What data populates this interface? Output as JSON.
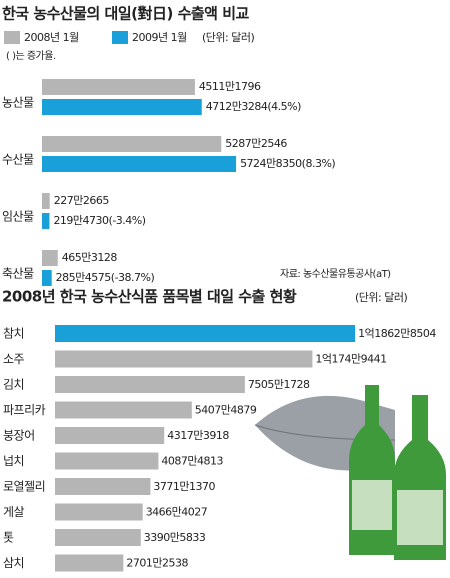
{
  "chart_data": [
    {
      "type": "bar",
      "orientation": "horizontal",
      "title": "한국 농수산물의 대일(對日) 수출액 비교",
      "unit_note": "(단위: 달러)",
      "note": "( )는 증가율.",
      "source": "자료: 농수산물유통공사(aT)",
      "categories": [
        "농산물",
        "수산물",
        "임산물",
        "축산물"
      ],
      "series": [
        {
          "name": "2008년 1월",
          "color": "#b5b5b5",
          "values": [
            45111796,
            52872546,
            2272665,
            4653128
          ],
          "value_labels": [
            "4511만1796",
            "5287만2546",
            "227만2665",
            "465만3128"
          ]
        },
        {
          "name": "2009년 1월",
          "color": "#1aa0d8",
          "values": [
            47123284,
            57248350,
            2194730,
            2854575
          ],
          "value_labels": [
            "4712만3284(4.5%)",
            "5724만8350(8.3%)",
            "219만4730(-3.4%)",
            "285만4575(-38.7%)"
          ]
        }
      ]
    },
    {
      "type": "bar",
      "orientation": "horizontal",
      "title": "2008년 한국 농수산식품 품목별 대일 수출 현황",
      "unit_note": "(단위: 달러)",
      "categories": [
        "참치",
        "소주",
        "김치",
        "파프리카",
        "붕장어",
        "넙치",
        "로열젤리",
        "게살",
        "톳",
        "삼치"
      ],
      "values": [
        118628504,
        101749441,
        75051728,
        54074879,
        43173918,
        40874813,
        37711370,
        34664027,
        33905833,
        27012538
      ],
      "value_labels": [
        "1억1862만8504",
        "1억174만9441",
        "7505만1728",
        "5407만4879",
        "4317만3918",
        "4087만4813",
        "3771만1370",
        "3466만4027",
        "3390만5833",
        "2701만2538"
      ],
      "colors": [
        "#1aa0d8",
        "#b5b5b5",
        "#b5b5b5",
        "#b5b5b5",
        "#b5b5b5",
        "#b5b5b5",
        "#b5b5b5",
        "#b5b5b5",
        "#b5b5b5",
        "#b5b5b5"
      ]
    }
  ]
}
